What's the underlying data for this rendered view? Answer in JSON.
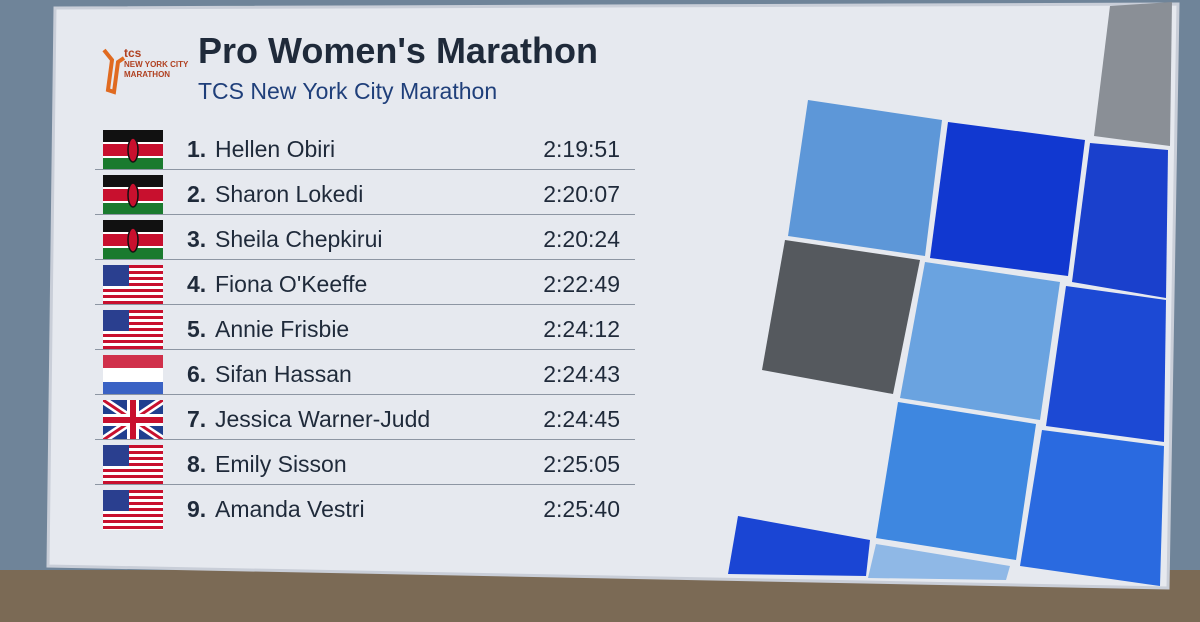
{
  "header": {
    "title": "Pro Women's Marathon",
    "subtitle": "TCS New York City Marathon",
    "logo": [
      "tcs",
      "NEW YORK CITY",
      "MARATHON"
    ]
  },
  "table": {
    "rows": [
      [
        "1.",
        "Hellen Obiri",
        "2:19:51"
      ],
      [
        "2.",
        "Sharon Lokedi",
        "2:20:07"
      ],
      [
        "3.",
        "Sheila Chepkirui",
        "2:20:24"
      ],
      [
        "4.",
        "Fiona O'Keeffe",
        "2:22:49"
      ],
      [
        "5.",
        "Annie Frisbie",
        "2:24:12"
      ],
      [
        "6.",
        "Sifan Hassan",
        "2:24:43"
      ],
      [
        "7.",
        "Jessica Warner-Judd",
        "2:24:45"
      ],
      [
        "8.",
        "Emily Sisson",
        "2:25:05"
      ],
      [
        "9.",
        "Amanda Vestri",
        "2:25:40"
      ]
    ]
  }
}
